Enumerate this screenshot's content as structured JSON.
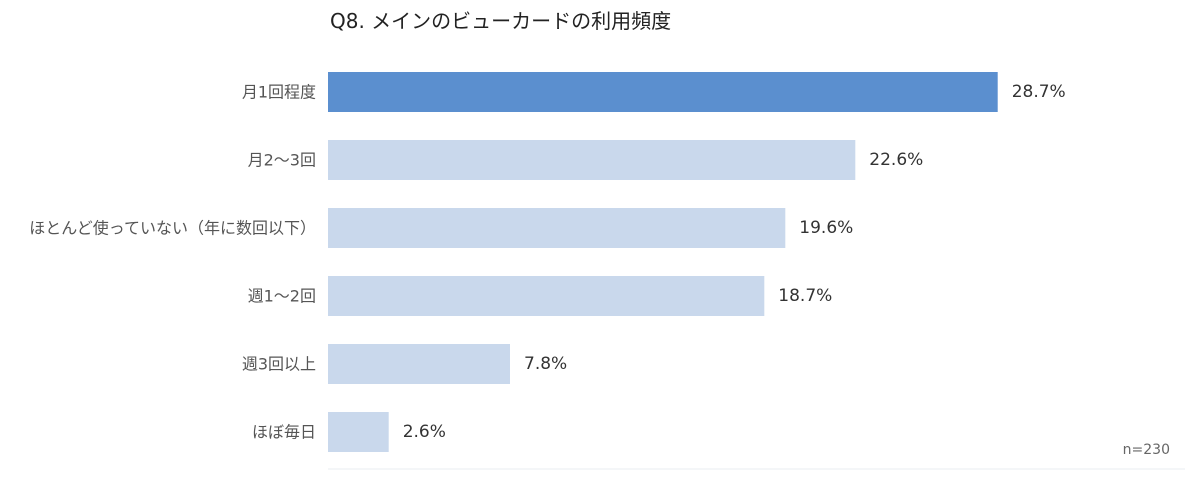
{
  "chart_data": {
    "type": "bar",
    "orientation": "horizontal",
    "title": "Q8. メインのビューカードの利用頻度",
    "categories": [
      "月1回程度",
      "月2〜3回",
      "ほとんど使っていない（年に数回以下）",
      "週1〜2回",
      "週3回以上",
      "ほぼ毎日"
    ],
    "values": [
      28.7,
      22.6,
      19.6,
      18.7,
      7.8,
      2.6
    ],
    "value_labels": [
      "28.7%",
      "22.6%",
      "19.6%",
      "18.7%",
      "7.8%",
      "2.6%"
    ],
    "unit": "%",
    "xlim": [
      0,
      30
    ],
    "grid": false,
    "legend": "none",
    "sample_size_label": "n=230",
    "colors": {
      "highlight": "#5b8fcf",
      "default": "#c9d8ec",
      "baseline": "#e8ecf2"
    },
    "highlight_index": 0
  }
}
